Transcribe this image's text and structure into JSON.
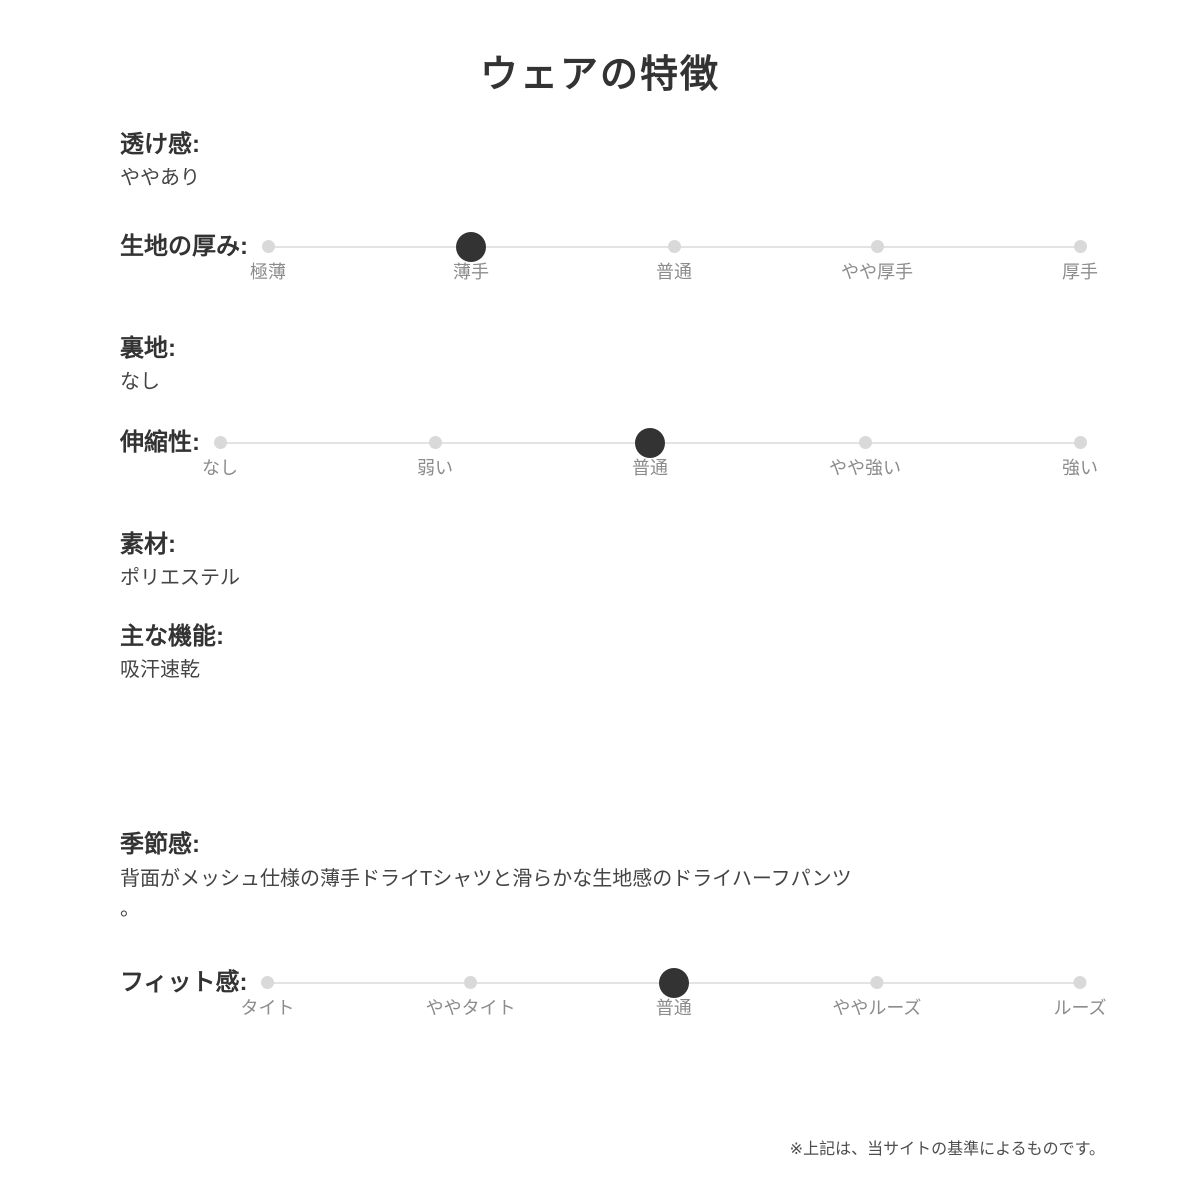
{
  "page": {
    "title": "ウェアの特徴",
    "footnote": "※上記は、当サイトの基準によるものです。"
  },
  "colors": {
    "heading": "#333333",
    "value_text": "#444444",
    "tick_label": "#8c8c8c",
    "track": "#e3e3e3",
    "dot_inactive": "#d9d9d9",
    "dot_active": "#333333",
    "background": "#ffffff"
  },
  "sections": {
    "sheerness": {
      "label": "透け感:",
      "value": "ややあり"
    },
    "fabric_thickness": {
      "label": "生地の厚み:",
      "options": [
        "極薄",
        "薄手",
        "普通",
        "やや厚手",
        "厚手"
      ],
      "selected": "薄手",
      "selected_index": 1
    },
    "lining": {
      "label": "裏地:",
      "value": "なし"
    },
    "stretch": {
      "label": "伸縮性:",
      "options": [
        "なし",
        "弱い",
        "普通",
        "やや強い",
        "強い"
      ],
      "selected": "普通",
      "selected_index": 2
    },
    "material": {
      "label": "素材:",
      "value": "ポリエステル"
    },
    "main_function": {
      "label": "主な機能:",
      "value": "吸汗速乾"
    },
    "season": {
      "label": "季節感:",
      "value": "背面がメッシュ仕様の薄手ドライTシャツと滑らかな生地感のドライハーフパンツ\n。"
    },
    "fit": {
      "label": "フィット感:",
      "options": [
        "タイト",
        "ややタイト",
        "普通",
        "ややルーズ",
        "ルーズ"
      ],
      "selected": "普通",
      "selected_index": 2
    }
  }
}
